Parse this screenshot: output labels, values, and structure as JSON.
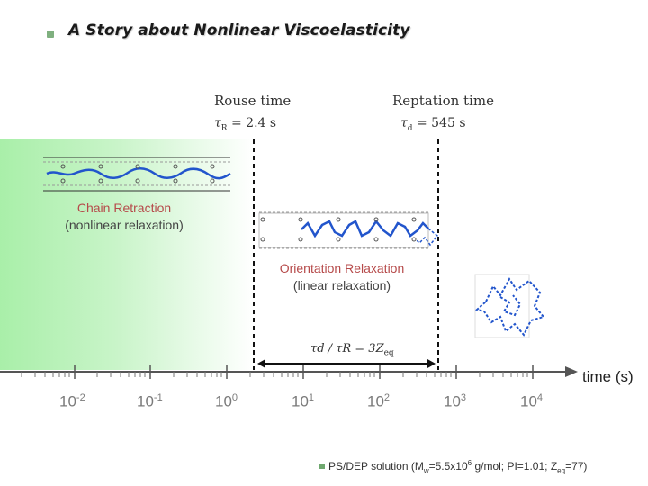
{
  "slide": {
    "title": "A Story about Nonlinear Viscoelasticity"
  },
  "rouse": {
    "label": "Rouse time",
    "symbol": "τ",
    "subscript": "R",
    "value": "= 2.4 s"
  },
  "reptation": {
    "label": "Reptation time",
    "symbol": "τ",
    "subscript": "d",
    "value": "= 545 s"
  },
  "ratio_formula": {
    "lhs": "τd / τR = 3Z",
    "subscript": "eq"
  },
  "chain_retraction": {
    "line1": "Chain Retraction",
    "line2": "(nonlinear relaxation)"
  },
  "orientation_relaxation": {
    "line1": "Orientation Relaxation",
    "line2": "(linear relaxation)"
  },
  "time_axis": {
    "label": "time (s)",
    "base": "10",
    "exponents": [
      "-2",
      "-1",
      "0",
      "1",
      "2",
      "3",
      "4"
    ]
  },
  "footnote": {
    "prefix": "PS/DEP solution (M",
    "mw_sub": "w",
    "mid1": "=5.5x10",
    "mw_sup": "6",
    "mid2": " g/mol; PI=1.01; Z",
    "z_sub": "eq",
    "suffix": "=77)"
  },
  "colors": {
    "chain_blue": "#2255cc",
    "caption_red": "#b64a4a",
    "green_fill": "#a9efa9",
    "axis_gray": "#555555"
  }
}
